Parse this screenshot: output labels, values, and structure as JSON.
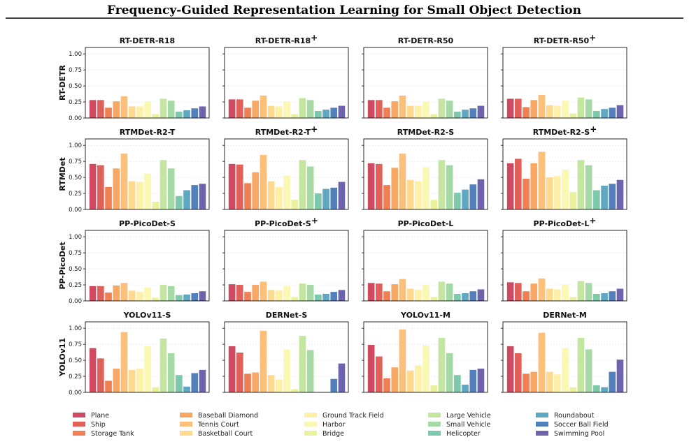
{
  "page_title": "Frequency-Guided Representation Learning for Small Object Detection",
  "categories": [
    "Plane",
    "Ship",
    "Storage Tank",
    "Baseball Diamond",
    "Tennis Court",
    "Basketball Court",
    "Ground Track Field",
    "Harbor",
    "Bridge",
    "Large Vehicle",
    "Small Vehicle",
    "Helicopter",
    "Roundabout",
    "Soccer Ball Field",
    "Swimming Pool"
  ],
  "colors": [
    "#cf4a60",
    "#e2605a",
    "#f07f53",
    "#f9a765",
    "#fdc07a",
    "#fed98e",
    "#fef0a6",
    "#fbf8b4",
    "#eaf29c",
    "#c5e6a0",
    "#a5d9a5",
    "#7cc9ab",
    "#5fa8c4",
    "#5180bc",
    "#6e64ae"
  ],
  "y_ticks": [
    "1.00",
    "0.75",
    "0.50",
    "0.25",
    "0.00"
  ],
  "chart_data": [
    {
      "type": "bar",
      "row": "RT-DETR",
      "title": "RT-DETR-R18",
      "values": [
        0.28,
        0.28,
        0.16,
        0.26,
        0.34,
        0.18,
        0.18,
        0.26,
        0.06,
        0.3,
        0.27,
        0.1,
        0.12,
        0.15,
        0.18
      ],
      "ylim": [
        0,
        1.1
      ]
    },
    {
      "type": "bar",
      "row": "RT-DETR",
      "title": "RT-DETR-R18+",
      "values": [
        0.29,
        0.29,
        0.16,
        0.27,
        0.35,
        0.19,
        0.18,
        0.26,
        0.06,
        0.31,
        0.28,
        0.11,
        0.13,
        0.16,
        0.19
      ],
      "ylim": [
        0,
        1.1
      ]
    },
    {
      "type": "bar",
      "row": "RT-DETR",
      "title": "RT-DETR-R50",
      "values": [
        0.28,
        0.28,
        0.16,
        0.26,
        0.35,
        0.19,
        0.19,
        0.26,
        0.06,
        0.3,
        0.27,
        0.1,
        0.13,
        0.15,
        0.19
      ],
      "ylim": [
        0,
        1.1
      ]
    },
    {
      "type": "bar",
      "row": "RT-DETR",
      "title": "RT-DETR-R50+",
      "values": [
        0.3,
        0.3,
        0.17,
        0.28,
        0.36,
        0.2,
        0.19,
        0.27,
        0.07,
        0.32,
        0.29,
        0.11,
        0.14,
        0.16,
        0.2
      ],
      "ylim": [
        0,
        1.1
      ]
    },
    {
      "type": "bar",
      "row": "RTMDet",
      "title": "RTMDet-R2-T",
      "values": [
        0.71,
        0.69,
        0.35,
        0.64,
        0.87,
        0.44,
        0.43,
        0.56,
        0.12,
        0.77,
        0.64,
        0.21,
        0.3,
        0.38,
        0.4
      ],
      "ylim": [
        0,
        1.1
      ]
    },
    {
      "type": "bar",
      "row": "RTMDet",
      "title": "RTMDet-R2-T+",
      "values": [
        0.71,
        0.7,
        0.41,
        0.58,
        0.85,
        0.44,
        0.35,
        0.53,
        0.15,
        0.77,
        0.67,
        0.25,
        0.32,
        0.34,
        0.43
      ],
      "ylim": [
        0,
        1.1
      ]
    },
    {
      "type": "bar",
      "row": "RTMDet",
      "title": "RTMDet-R2-S",
      "values": [
        0.72,
        0.71,
        0.38,
        0.65,
        0.87,
        0.46,
        0.44,
        0.66,
        0.15,
        0.77,
        0.69,
        0.26,
        0.31,
        0.39,
        0.47
      ],
      "ylim": [
        0,
        1.1
      ]
    },
    {
      "type": "bar",
      "row": "RTMDet",
      "title": "RTMDet-R2-S+",
      "values": [
        0.72,
        0.79,
        0.48,
        0.72,
        0.9,
        0.5,
        0.52,
        0.62,
        0.27,
        0.77,
        0.69,
        0.3,
        0.37,
        0.4,
        0.46
      ],
      "ylim": [
        0,
        1.1
      ]
    },
    {
      "type": "bar",
      "row": "PP-PicoDet",
      "title": "PP-PicoDet-S",
      "values": [
        0.23,
        0.23,
        0.13,
        0.24,
        0.28,
        0.16,
        0.14,
        0.21,
        0.05,
        0.25,
        0.23,
        0.09,
        0.1,
        0.12,
        0.15
      ],
      "ylim": [
        0,
        1.1
      ]
    },
    {
      "type": "bar",
      "row": "PP-PicoDet",
      "title": "PP-PicoDet-S+",
      "values": [
        0.26,
        0.25,
        0.14,
        0.25,
        0.3,
        0.17,
        0.16,
        0.23,
        0.06,
        0.27,
        0.25,
        0.1,
        0.11,
        0.14,
        0.17
      ],
      "ylim": [
        0,
        1.1
      ]
    },
    {
      "type": "bar",
      "row": "PP-PicoDet",
      "title": "PP-PicoDet-L",
      "values": [
        0.28,
        0.27,
        0.15,
        0.26,
        0.34,
        0.19,
        0.17,
        0.25,
        0.06,
        0.3,
        0.27,
        0.11,
        0.12,
        0.15,
        0.18
      ],
      "ylim": [
        0,
        1.1
      ]
    },
    {
      "type": "bar",
      "row": "PP-PicoDet",
      "title": "PP-PicoDet-L+",
      "values": [
        0.29,
        0.28,
        0.15,
        0.27,
        0.35,
        0.19,
        0.18,
        0.26,
        0.06,
        0.31,
        0.28,
        0.11,
        0.12,
        0.15,
        0.19
      ],
      "ylim": [
        0,
        1.1
      ]
    },
    {
      "type": "bar",
      "row": "YOLOv11",
      "title": "YOLOv11-S",
      "values": [
        0.69,
        0.53,
        0.18,
        0.37,
        0.94,
        0.35,
        0.37,
        0.72,
        0.08,
        0.84,
        0.61,
        0.27,
        0.09,
        0.3,
        0.35
      ],
      "ylim": [
        0,
        1.1
      ]
    },
    {
      "type": "bar",
      "row": "YOLOv11",
      "title": "DERNet-S",
      "values": [
        0.72,
        0.62,
        0.29,
        0.31,
        0.96,
        0.27,
        0.2,
        0.67,
        0.05,
        0.88,
        0.66,
        0.0,
        0.0,
        0.21,
        0.45
      ],
      "ylim": [
        0,
        1.1
      ]
    },
    {
      "type": "bar",
      "row": "YOLOv11",
      "title": "YOLOv11-M",
      "values": [
        0.74,
        0.56,
        0.22,
        0.39,
        0.98,
        0.34,
        0.42,
        0.73,
        0.11,
        0.85,
        0.61,
        0.27,
        0.12,
        0.35,
        0.37
      ],
      "ylim": [
        0,
        1.1
      ]
    },
    {
      "type": "bar",
      "row": "YOLOv11",
      "title": "DERNet-M",
      "values": [
        0.72,
        0.61,
        0.29,
        0.32,
        0.93,
        0.32,
        0.28,
        0.69,
        0.08,
        0.85,
        0.67,
        0.11,
        0.08,
        0.32,
        0.51
      ],
      "ylim": [
        0,
        1.1
      ]
    }
  ],
  "row_labels": [
    "RT-DETR",
    "RTMDet",
    "PP-PicoDet",
    "YOLOv11"
  ]
}
